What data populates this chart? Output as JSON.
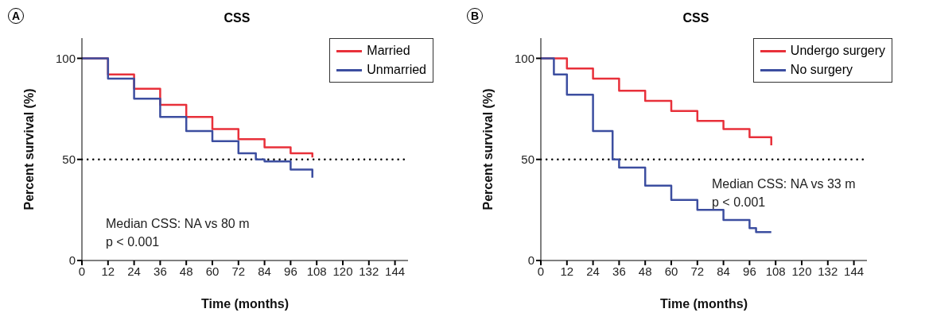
{
  "chart_data": [
    {
      "type": "step",
      "title": "CSS",
      "xlabel": "Time (months)",
      "ylabel": "Percent survival (%)",
      "annotations": [
        "A",
        "Median CSS: NA vs 80 m",
        "p < 0.001"
      ],
      "xlim": [
        0,
        150
      ],
      "xticks": [
        0,
        12,
        24,
        36,
        48,
        60,
        72,
        84,
        96,
        108,
        120,
        132,
        144
      ],
      "ylim": [
        0,
        110
      ],
      "yticks": [
        0,
        50,
        100
      ],
      "legend": "top right",
      "line_style": "solid",
      "ref_lines": [
        {
          "axis": "y",
          "value": 50,
          "color": "#000000",
          "line_style": "dotted"
        }
      ],
      "series": [
        {
          "name": "Married",
          "color": "#e8303a",
          "x": [
            0,
            12,
            24,
            36,
            48,
            60,
            72,
            84,
            96,
            106
          ],
          "values": [
            100,
            92,
            85,
            77,
            71,
            65,
            60,
            56,
            53,
            51
          ]
        },
        {
          "name": "Unmarried",
          "color": "#3c4ea0",
          "x": [
            0,
            12,
            24,
            36,
            48,
            60,
            72,
            80,
            84,
            96,
            106
          ],
          "values": [
            100,
            90,
            80,
            71,
            64,
            59,
            53,
            50,
            49,
            45,
            41
          ]
        }
      ]
    },
    {
      "type": "step",
      "title": "CSS",
      "xlabel": "Time (months)",
      "ylabel": "Percent survival (%)",
      "annotations": [
        "B",
        "Median CSS: NA vs 33 m",
        "p < 0.001"
      ],
      "xlim": [
        0,
        150
      ],
      "xticks": [
        0,
        12,
        24,
        36,
        48,
        60,
        72,
        84,
        96,
        108,
        120,
        132,
        144
      ],
      "ylim": [
        0,
        110
      ],
      "yticks": [
        0,
        50,
        100
      ],
      "legend": "top right",
      "line_style": "solid",
      "ref_lines": [
        {
          "axis": "y",
          "value": 50,
          "color": "#000000",
          "line_style": "dotted"
        }
      ],
      "series": [
        {
          "name": "Undergo surgery",
          "color": "#e8303a",
          "x": [
            0,
            12,
            24,
            36,
            48,
            60,
            72,
            84,
            96,
            106
          ],
          "values": [
            100,
            95,
            90,
            84,
            79,
            74,
            69,
            65,
            61,
            57
          ]
        },
        {
          "name": "No surgery",
          "color": "#3c4ea0",
          "x": [
            0,
            6,
            12,
            24,
            33,
            36,
            48,
            60,
            72,
            84,
            96,
            99,
            106
          ],
          "values": [
            100,
            92,
            82,
            64,
            50,
            46,
            37,
            30,
            25,
            20,
            16,
            14,
            14
          ]
        }
      ]
    }
  ]
}
